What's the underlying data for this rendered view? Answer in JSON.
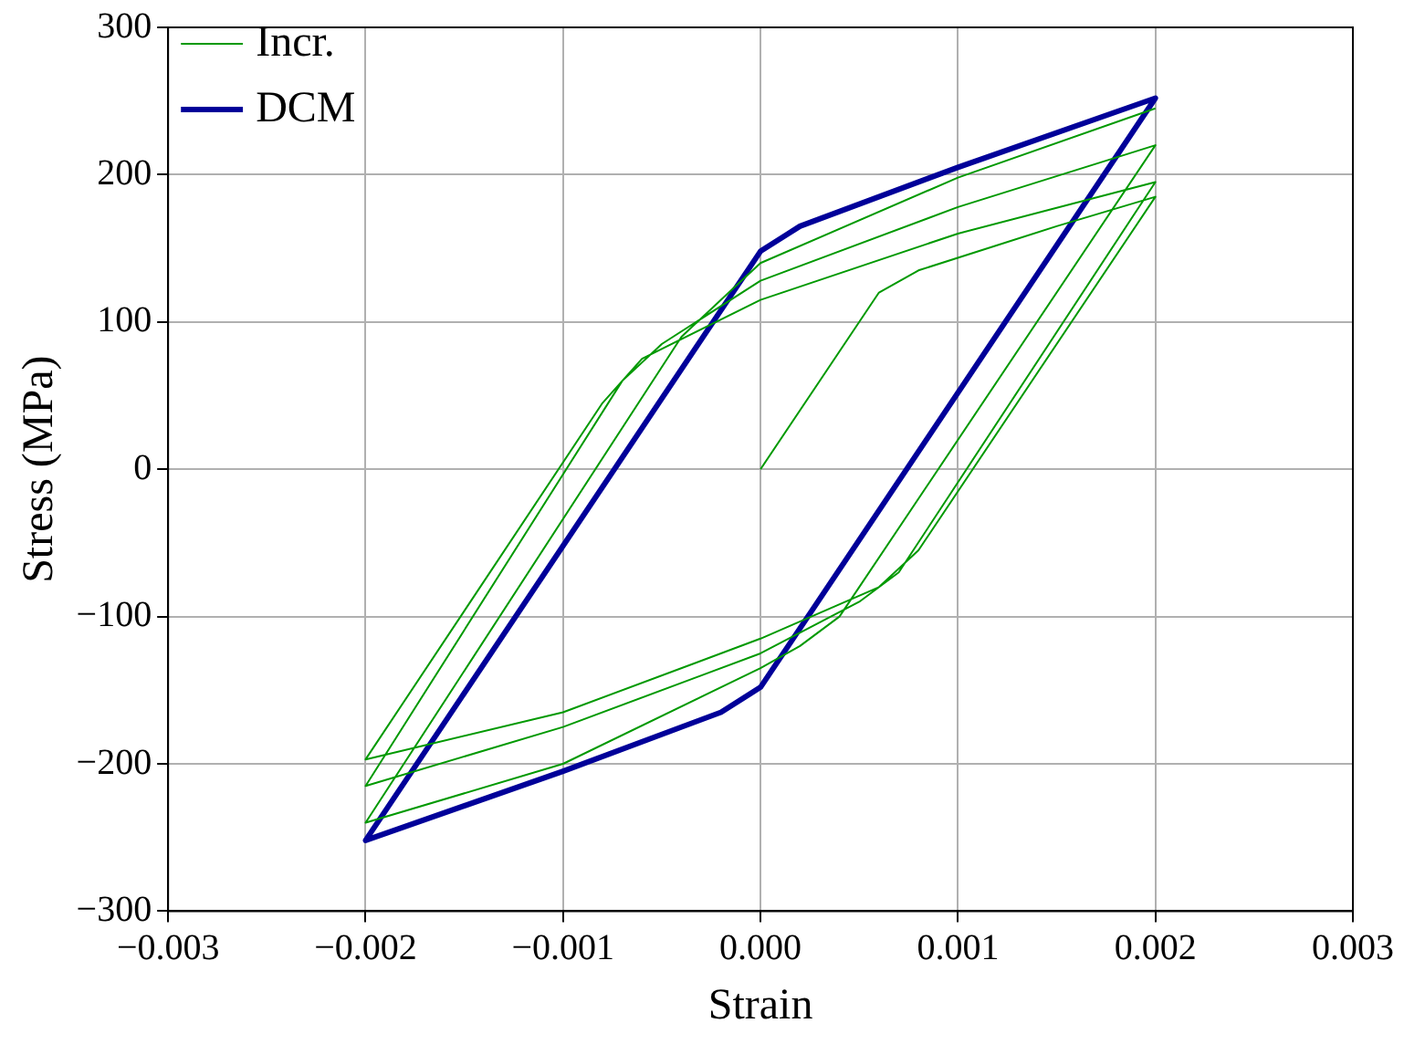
{
  "chart_data": {
    "type": "line",
    "xlabel": "Strain",
    "ylabel": "Stress (MPa)",
    "xlim": [
      -0.003,
      0.003
    ],
    "ylim": [
      -300,
      300
    ],
    "xticks": [
      {
        "value": -0.003,
        "label": "−0.003"
      },
      {
        "value": -0.002,
        "label": "−0.002"
      },
      {
        "value": -0.001,
        "label": "−0.001"
      },
      {
        "value": 0,
        "label": "0.000"
      },
      {
        "value": 0.001,
        "label": "0.001"
      },
      {
        "value": 0.002,
        "label": "0.002"
      },
      {
        "value": 0.003,
        "label": "0.003"
      }
    ],
    "yticks": [
      {
        "value": -300,
        "label": "−300"
      },
      {
        "value": -200,
        "label": "−200"
      },
      {
        "value": -100,
        "label": "−100"
      },
      0,
      100,
      200,
      300
    ],
    "grid": true,
    "legend": "top left",
    "marker": "none",
    "line_style": "solid",
    "series": [
      {
        "name": "Incr.",
        "color": "#009900",
        "x": [
          0,
          0.0006,
          0.0008,
          0.0015,
          0.002,
          0.0008,
          0.0006,
          0,
          -0.001,
          -0.002,
          -0.0008,
          -0.0006,
          0,
          0.001,
          0.002,
          0.0007,
          0.0005,
          0,
          -0.001,
          -0.002,
          -0.0007,
          -0.0005,
          0,
          0.001,
          0.002,
          0.0004,
          0.0002,
          0,
          -0.001,
          -0.002,
          -0.0004,
          -0.0002,
          0,
          0.001,
          0.002
        ],
        "values": [
          0,
          120,
          135,
          165,
          185,
          -55,
          -80,
          -115,
          -165,
          -197,
          45,
          75,
          115,
          160,
          195,
          -70,
          -90,
          -125,
          -175,
          -215,
          60,
          85,
          128,
          178,
          220,
          -100,
          -120,
          -135,
          -200,
          -240,
          90,
          115,
          140,
          198,
          245
        ]
      },
      {
        "name": "DCM",
        "color": "#000099",
        "x": [
          -0.002,
          0,
          0.0002,
          0.001,
          0.002,
          0,
          -0.0002,
          -0.001,
          -0.002,
          -0.0015
        ],
        "values": [
          -252,
          148,
          165,
          205,
          252,
          -148,
          -165,
          -205,
          -252,
          -152
        ]
      }
    ]
  }
}
